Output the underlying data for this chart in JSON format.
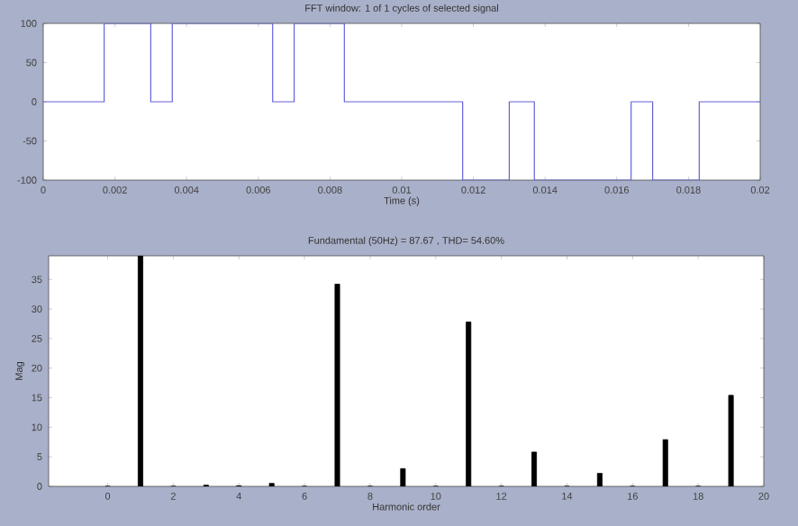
{
  "chart_data": [
    {
      "type": "step",
      "title": "FFT window: 1 of 1 cycles of selected signal",
      "xlabel": "Time (s)",
      "x": [
        0,
        0.0017,
        0.003,
        0.0036,
        0.0064,
        0.007,
        0.0084,
        0.0117,
        0.013,
        0.0137,
        0.0164,
        0.017,
        0.0183,
        0.02
      ],
      "values": [
        0,
        100,
        0,
        100,
        0,
        100,
        0,
        -100,
        0,
        -100,
        0,
        -100,
        0,
        0
      ],
      "color": "#6262dc",
      "xlim": [
        0,
        0.02
      ],
      "ylim": [
        -100,
        100
      ],
      "xticks": [
        0,
        0.002,
        0.004,
        0.006,
        0.008,
        0.01,
        0.012,
        0.014,
        0.016,
        0.018,
        0.02
      ],
      "yticks": [
        -100,
        -50,
        0,
        50,
        100
      ]
    },
    {
      "type": "bar",
      "title": "Fundamental (50Hz) = 87.67 , THD= 54.60%",
      "xlabel": "Harmonic order",
      "ylabel": "Mag",
      "x": [
        0,
        1,
        2,
        3,
        4,
        5,
        6,
        7,
        8,
        9,
        10,
        11,
        12,
        13,
        14,
        15,
        16,
        17,
        18,
        19
      ],
      "values": [
        0,
        39,
        0,
        0.2,
        0.1,
        0.5,
        0,
        34.2,
        0,
        3,
        0,
        27.8,
        0,
        5.8,
        0,
        2.2,
        0,
        7.9,
        0,
        15.4
      ],
      "color": "#000000",
      "xlim": [
        -1.8,
        20
      ],
      "ylim": [
        0,
        39
      ],
      "xticks": [
        0,
        2,
        4,
        6,
        8,
        10,
        12,
        14,
        16,
        18,
        20
      ],
      "yticks": [
        0,
        5,
        10,
        15,
        20,
        25,
        30,
        35
      ]
    }
  ]
}
